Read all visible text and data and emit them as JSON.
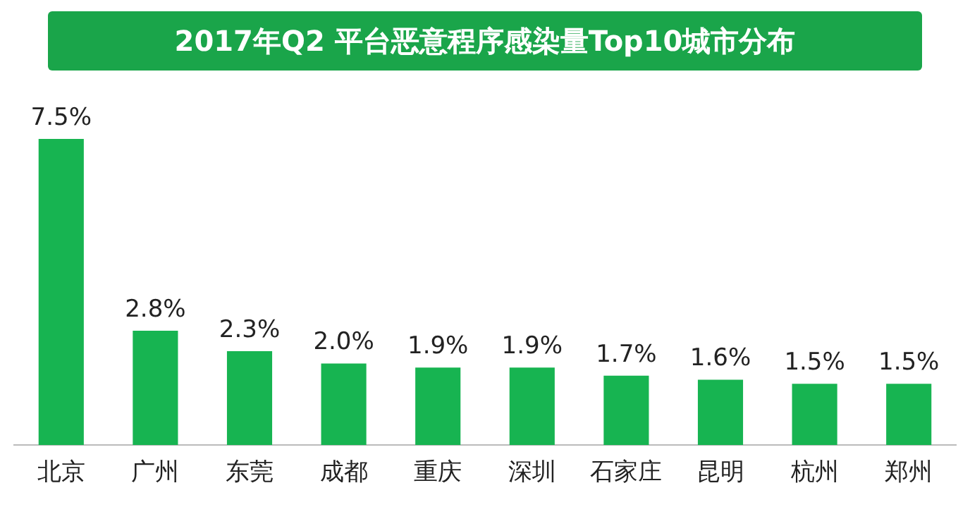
{
  "chart_data": {
    "type": "bar",
    "title": "2017年Q2 平台恶意程序感染量Top10城市分布",
    "categories": [
      "北京",
      "广州",
      "东莞",
      "成都",
      "重庆",
      "深圳",
      "石家庄",
      "昆明",
      "杭州",
      "郑州"
    ],
    "values": [
      7.5,
      2.8,
      2.3,
      2.0,
      1.9,
      1.9,
      1.7,
      1.6,
      1.5,
      1.5
    ],
    "value_labels": [
      "7.5%",
      "2.8%",
      "2.3%",
      "2.0%",
      "1.9%",
      "1.9%",
      "1.7%",
      "1.6%",
      "1.5%",
      "1.5%"
    ],
    "color": "#17b451",
    "tick_labels": "x",
    "grid": false,
    "legend": false
  }
}
